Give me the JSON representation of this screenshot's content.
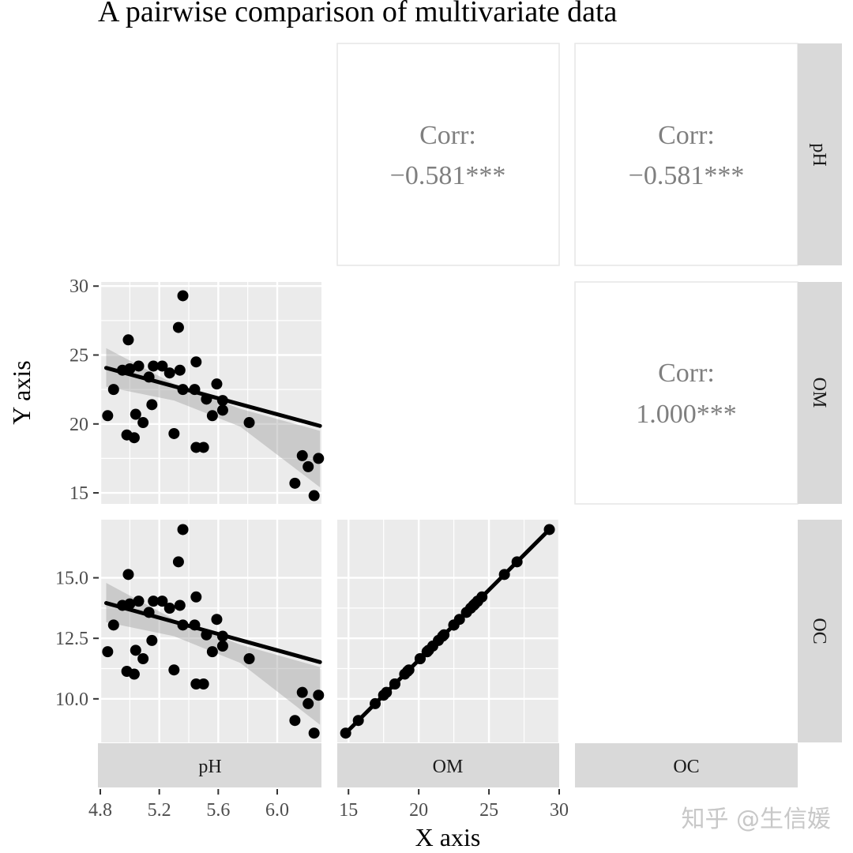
{
  "chart_data": {
    "type": "scatter",
    "title": "A pairwise comparison of multivariate data",
    "xlabel": "X axis",
    "ylabel": "Y axis",
    "variables": [
      "pH",
      "OM",
      "OC"
    ],
    "axes": {
      "pH": {
        "range": [
          4.8,
          6.3
        ],
        "ticks": [
          4.8,
          5.2,
          5.6,
          6.0
        ],
        "tick_labels": [
          "4.8",
          "5.2",
          "5.6",
          "6.0"
        ]
      },
      "OM": {
        "range": [
          14.2,
          30.0
        ],
        "ticks": [
          15,
          20,
          25,
          30
        ],
        "tick_labels": [
          "15",
          "20",
          "25",
          "30"
        ]
      },
      "OC": {
        "range": [
          8.2,
          17.4
        ],
        "ticks": [
          10.0,
          12.5,
          15.0
        ],
        "tick_labels": [
          "10.0",
          "12.5",
          "15.0"
        ]
      }
    },
    "om_y_axis": {
      "range": [
        14.2,
        30.3
      ],
      "ticks": [
        15,
        20,
        25,
        30
      ],
      "tick_labels": [
        "15",
        "20",
        "25",
        "30"
      ]
    },
    "correlations": [
      {
        "row": "pH",
        "col": "OM",
        "label": "Corr:",
        "value": "−0.581***"
      },
      {
        "row": "pH",
        "col": "OC",
        "label": "Corr:",
        "value": "−0.581***"
      },
      {
        "row": "OM",
        "col": "OC",
        "label": "Corr:",
        "value": "1.000***"
      }
    ],
    "points": [
      {
        "pH": 4.85,
        "OM": 20.6
      },
      {
        "pH": 4.89,
        "OM": 22.5
      },
      {
        "pH": 4.95,
        "OM": 23.9
      },
      {
        "pH": 4.98,
        "OM": 19.2
      },
      {
        "pH": 4.99,
        "OM": 26.1
      },
      {
        "pH": 5.0,
        "OM": 24.0
      },
      {
        "pH": 5.03,
        "OM": 19.0
      },
      {
        "pH": 5.04,
        "OM": 20.7
      },
      {
        "pH": 5.06,
        "OM": 24.2
      },
      {
        "pH": 5.09,
        "OM": 20.1
      },
      {
        "pH": 5.13,
        "OM": 23.4
      },
      {
        "pH": 5.15,
        "OM": 21.4
      },
      {
        "pH": 5.16,
        "OM": 24.2
      },
      {
        "pH": 5.22,
        "OM": 24.2
      },
      {
        "pH": 5.27,
        "OM": 23.7
      },
      {
        "pH": 5.3,
        "OM": 19.3
      },
      {
        "pH": 5.33,
        "OM": 27.0
      },
      {
        "pH": 5.34,
        "OM": 23.9
      },
      {
        "pH": 5.36,
        "OM": 29.3
      },
      {
        "pH": 5.36,
        "OM": 22.5
      },
      {
        "pH": 5.44,
        "OM": 22.5
      },
      {
        "pH": 5.45,
        "OM": 24.5
      },
      {
        "pH": 5.45,
        "OM": 18.3
      },
      {
        "pH": 5.5,
        "OM": 18.3
      },
      {
        "pH": 5.52,
        "OM": 21.8
      },
      {
        "pH": 5.56,
        "OM": 20.6
      },
      {
        "pH": 5.59,
        "OM": 22.9
      },
      {
        "pH": 5.63,
        "OM": 21.7
      },
      {
        "pH": 5.63,
        "OM": 21.0
      },
      {
        "pH": 5.81,
        "OM": 20.1
      },
      {
        "pH": 6.12,
        "OM": 15.7
      },
      {
        "pH": 6.17,
        "OM": 17.7
      },
      {
        "pH": 6.21,
        "OM": 16.9
      },
      {
        "pH": 6.25,
        "OM": 14.8
      },
      {
        "pH": 6.28,
        "OM": 17.5
      }
    ],
    "oc_per_om": 0.58,
    "fit_pH_OM": {
      "intercept": 38.1,
      "slope": -2.9,
      "x_range": [
        4.84,
        6.29
      ]
    },
    "ci_band_pH_OM": {
      "x": [
        4.84,
        5.3,
        5.75,
        6.29
      ],
      "lower": [
        22.7,
        21.7,
        19.8,
        15.4
      ],
      "upper": [
        25.5,
        22.9,
        21.1,
        19.5
      ]
    },
    "strip_labels": {
      "columns": [
        "pH",
        "OM",
        "OC"
      ],
      "rows": [
        "pH",
        "OM",
        "OC"
      ]
    },
    "watermark": "知乎 @生信媛"
  }
}
